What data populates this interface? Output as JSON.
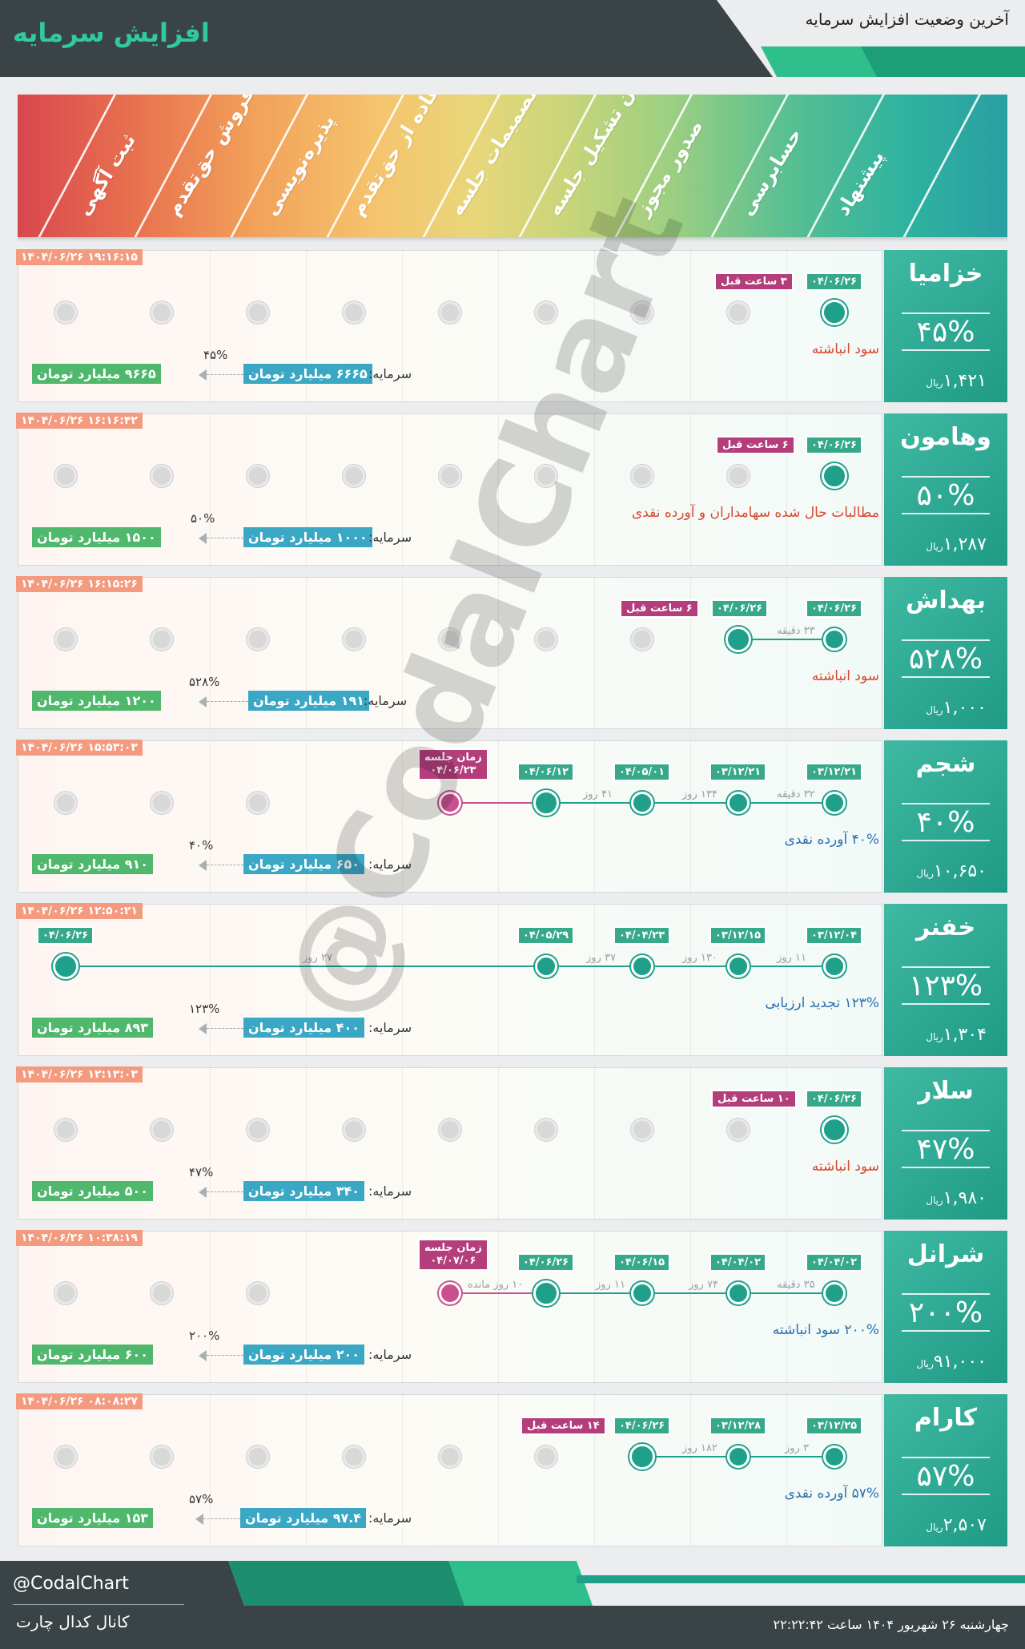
{
  "header": {
    "title": "افزایش سرمایه",
    "subtitle": "آخرین وضعیت افزایش سرمایه"
  },
  "steps": [
    "ثبت آگهی",
    "فروش حق‌تقدم",
    "پذیره‌نویسی",
    "استفاده از حق‌تقدم",
    "تصمیمات جلسه",
    "زمان تشکیل جلسه",
    "صدور مجوز",
    "حسابرسی",
    "پیشنهاد"
  ],
  "labels": {
    "capital": "سرمایه:"
  },
  "rows": [
    {
      "symbol": "خزامیا",
      "percent": "۴۵%",
      "price": "۱,۴۲۱",
      "price_unit": "ریال",
      "timestamp": "۱۴۰۴/۰۶/۲۶ ۱۹:۱۶:۱۵",
      "date1": "۰۴/۰۶/۲۶",
      "ago": "۳ ساعت قبل",
      "note": "سود انباشته",
      "cap_old": "۶۶۶۵ میلیارد تومان",
      "cap_new": "۹۶۶۵ میلیارد تومان",
      "cap_pct": "۴۵%"
    },
    {
      "symbol": "وهامون",
      "percent": "۵۰%",
      "price": "۱,۲۸۷",
      "price_unit": "ریال",
      "timestamp": "۱۴۰۴/۰۶/۲۶ ۱۶:۱۶:۴۲",
      "date1": "۰۴/۰۶/۲۶",
      "ago": "۶ ساعت قبل",
      "note": "مطالبات حال شده سهامداران و آورده نقدی",
      "cap_old": "۱۰۰۰ میلیارد تومان",
      "cap_new": "۱۵۰۰ میلیارد تومان",
      "cap_pct": "۵۰%"
    },
    {
      "symbol": "بهداش",
      "percent": "۵۲۸%",
      "price": "۱,۰۰۰",
      "price_unit": "ریال",
      "timestamp": "۱۴۰۴/۰۶/۲۶ ۱۶:۱۵:۲۶",
      "date1": "۰۴/۰۶/۲۶",
      "date2": "۰۴/۰۶/۲۶",
      "seg1": "۳۳ دقیقه",
      "ago": "۶ ساعت قبل",
      "note": "سود انباشته",
      "cap_old": "۱۹۱ میلیارد تومان",
      "cap_new": "۱۲۰۰ میلیارد تومان",
      "cap_pct": "۵۲۸%"
    },
    {
      "symbol": "شجم",
      "percent": "۴۰%",
      "price": "۱۰,۶۵۰",
      "price_unit": "ریال",
      "timestamp": "۱۴۰۴/۰۶/۲۶ ۱۵:۵۳:۰۳",
      "date1": "۰۳/۱۲/۲۱",
      "date2": "۰۳/۱۲/۲۱",
      "date3": "۰۴/۰۵/۰۱",
      "date4": "۰۴/۰۶/۱۲",
      "seg1": "۳۲ دقیقه",
      "seg2": "۱۳۴ روز",
      "seg3": "۴۱ روز",
      "meeting": "زمان جلسه",
      "meeting_date": "۰۴/۰۶/۲۳",
      "note": "۴۰% آورده نقدی",
      "cap_old": "۶۵۰ میلیارد تومان",
      "cap_new": "۹۱۰ میلیارد تومان",
      "cap_pct": "۴۰%"
    },
    {
      "symbol": "خفنر",
      "percent": "۱۲۳%",
      "price": "۱,۳۰۴",
      "price_unit": "ریال",
      "timestamp": "۱۴۰۴/۰۶/۲۶ ۱۲:۵۰:۲۱",
      "date1": "۰۳/۱۲/۰۴",
      "date2": "۰۳/۱۲/۱۵",
      "date3": "۰۴/۰۴/۲۳",
      "date4": "۰۴/۰۵/۲۹",
      "date5": "۰۴/۰۶/۲۶",
      "seg1": "۱۱ روز",
      "seg2": "۱۳۰ روز",
      "seg3": "۳۷ روز",
      "seg4": "۲۷ روز",
      "note": "۱۲۳% تجدید ارزیابی",
      "cap_old": "۴۰۰ میلیارد تومان",
      "cap_new": "۸۹۳ میلیارد تومان",
      "cap_pct": "۱۲۳%"
    },
    {
      "symbol": "سلار",
      "percent": "۴۷%",
      "price": "۱,۹۸۰",
      "price_unit": "ریال",
      "timestamp": "۱۴۰۴/۰۶/۲۶ ۱۲:۱۳:۰۳",
      "date1": "۰۴/۰۶/۲۶",
      "ago": "۱۰ ساعت قبل",
      "note": "سود انباشته",
      "cap_old": "۳۴۰ میلیارد تومان",
      "cap_new": "۵۰۰ میلیارد تومان",
      "cap_pct": "۴۷%"
    },
    {
      "symbol": "شرانل",
      "percent": "۲۰۰%",
      "price": "۹۱,۰۰۰",
      "price_unit": "ریال",
      "timestamp": "۱۴۰۴/۰۶/۲۶ ۱۰:۳۸:۱۹",
      "date1": "۰۴/۰۴/۰۲",
      "date2": "۰۴/۰۴/۰۲",
      "date3": "۰۴/۰۶/۱۵",
      "date4": "۰۴/۰۶/۲۶",
      "seg1": "۳۵ دقیقه",
      "seg2": "۷۴ روز",
      "seg3": "۱۱ روز",
      "seg4": "۱۰ روز مانده",
      "meeting": "زمان جلسه",
      "meeting_date": "۰۴/۰۷/۰۶",
      "note": "۲۰۰% سود انباشته",
      "cap_old": "۲۰۰ میلیارد تومان",
      "cap_new": "۶۰۰ میلیارد تومان",
      "cap_pct": "۲۰۰%"
    },
    {
      "symbol": "کارام",
      "percent": "۵۷%",
      "price": "۲,۵۰۷",
      "price_unit": "ریال",
      "timestamp": "۱۴۰۴/۰۶/۲۶ ۰۸:۰۸:۲۷",
      "date1": "۰۳/۱۲/۲۵",
      "date2": "۰۳/۱۲/۲۸",
      "date3": "۰۴/۰۶/۲۶",
      "seg1": "۳ روز",
      "seg2": "۱۸۲ روز",
      "ago": "۱۴ ساعت قبل",
      "note": "۵۷% آورده نقدی",
      "cap_old": "۹۷.۴ میلیارد تومان",
      "cap_new": "۱۵۳ میلیارد تومان",
      "cap_pct": "۵۷%"
    }
  ],
  "watermark": "@CodalChart",
  "footer": {
    "handle": "@CodalChart",
    "channel": "کانال کدال چارت",
    "date": "چهارشنبه ۲۶ شهریور ۱۴۰۴ ساعت ۲۲:۲۲:۴۲"
  },
  "colors": {
    "accent": "#1fa08a",
    "pink": "#b43d7c",
    "timestamp": "#f39a7f",
    "cap_new": "#4fb86c",
    "cap_old": "#3aa7c4"
  }
}
